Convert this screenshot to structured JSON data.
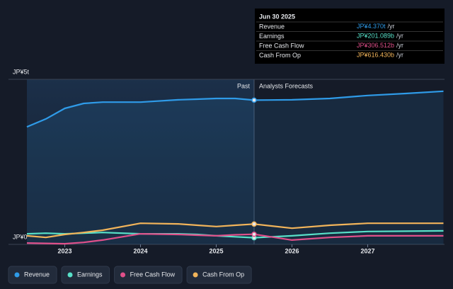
{
  "chart_data": {
    "type": "line",
    "x": [
      2022.5,
      2022.75,
      2023,
      2023.25,
      2023.5,
      2024,
      2024.5,
      2024.75,
      2025,
      2025.25,
      2025.5,
      2026,
      2026.5,
      2027,
      2027.5,
      2028
    ],
    "series": [
      {
        "name": "Revenue",
        "color": "#2f9be8",
        "values": [
          3.56,
          3.8,
          4.12,
          4.27,
          4.31,
          4.31,
          4.38,
          4.4,
          4.42,
          4.42,
          4.37,
          4.38,
          4.42,
          4.51,
          4.57,
          4.64
        ]
      },
      {
        "name": "Earnings",
        "color": "#58e0c8",
        "values": [
          0.32,
          0.34,
          0.32,
          0.34,
          0.36,
          0.32,
          0.32,
          0.3,
          0.26,
          0.23,
          0.201,
          0.26,
          0.34,
          0.39,
          0.4,
          0.41
        ]
      },
      {
        "name": "Free Cash Flow",
        "color": "#e0508a",
        "values": [
          0.04,
          0.03,
          0.02,
          0.06,
          0.13,
          0.32,
          0.3,
          0.28,
          0.26,
          0.29,
          0.307,
          0.13,
          0.21,
          0.26,
          0.26,
          0.26
        ]
      },
      {
        "name": "Cash From Op",
        "color": "#f2b45a",
        "values": [
          0.26,
          0.21,
          0.3,
          0.36,
          0.43,
          0.64,
          0.62,
          0.58,
          0.54,
          0.58,
          0.616,
          0.49,
          0.58,
          0.64,
          0.64,
          0.64
        ]
      }
    ],
    "xlim": [
      2022.5,
      2028
    ],
    "xticks": [
      2023,
      2024,
      2025,
      2026,
      2027
    ],
    "ylim": [
      0,
      5
    ],
    "yticks": [
      {
        "value": 0,
        "label": "JP¥0"
      },
      {
        "value": 5,
        "label": "JP¥5t"
      }
    ],
    "grid": true,
    "divider": 2025.5,
    "past_label": "Past",
    "forecast_label": "Analysts Forecasts",
    "tooltip": {
      "title": "Jun 30 2025",
      "index": 10,
      "labels": [
        "JP¥4.370t",
        "JP¥201.089b",
        "JP¥306.512b",
        "JP¥616.430b"
      ],
      "unit": "/yr"
    }
  }
}
